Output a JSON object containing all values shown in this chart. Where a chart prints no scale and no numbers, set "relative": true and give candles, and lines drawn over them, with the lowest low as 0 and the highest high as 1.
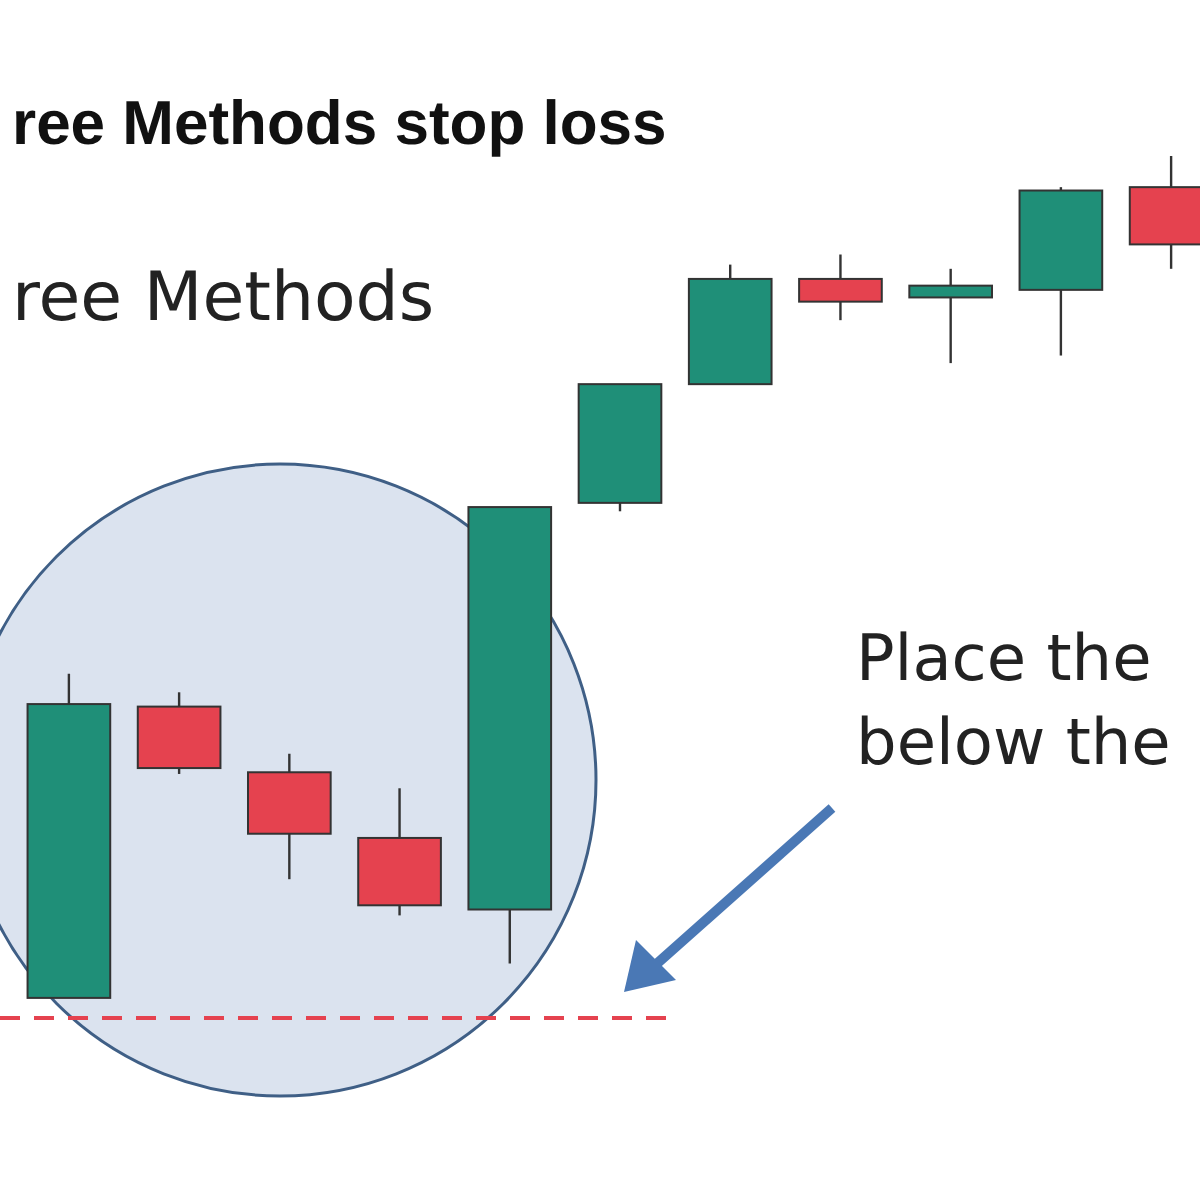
{
  "chart_data": {
    "type": "candlestick",
    "title": "ree Methods stop loss",
    "relative": true,
    "categories": [
      null,
      null,
      null,
      null,
      null,
      null,
      null,
      null,
      null,
      null,
      null
    ],
    "ohlc": [
      [
        0,
        0.385,
        0,
        0.349
      ],
      [
        0.346,
        0.363,
        0.266,
        0.273
      ],
      [
        0.268,
        0.29,
        0.141,
        0.195
      ],
      [
        0.19,
        0.249,
        0.098,
        0.11
      ],
      [
        0.105,
        0.583,
        0.041,
        0.583
      ],
      [
        0.588,
        0.729,
        0.578,
        0.729
      ],
      [
        0.729,
        0.871,
        0.729,
        0.854
      ],
      [
        0.854,
        0.883,
        0.805,
        0.827
      ],
      [
        0.832,
        0.866,
        0.754,
        0.846
      ],
      [
        0.841,
        0.963,
        0.763,
        0.959
      ],
      [
        0.963,
        1,
        0.866,
        0.895
      ]
    ],
    "colors": [
      "#1f8f78",
      "#e5424f",
      "#e5424f",
      "#e5424f",
      "#1f8f78",
      "#1f8f78",
      "#1f8f78",
      "#e5424f",
      "#1f8f78",
      "#1f8f78",
      "#e5424f"
    ],
    "ref_lines": [
      {
        "axis": "y",
        "value": -0.024,
        "color": "#e5424f",
        "line_style": "dashed"
      }
    ],
    "annotations": [
      "ree Methods",
      "Place the\nbelow the"
    ]
  }
}
